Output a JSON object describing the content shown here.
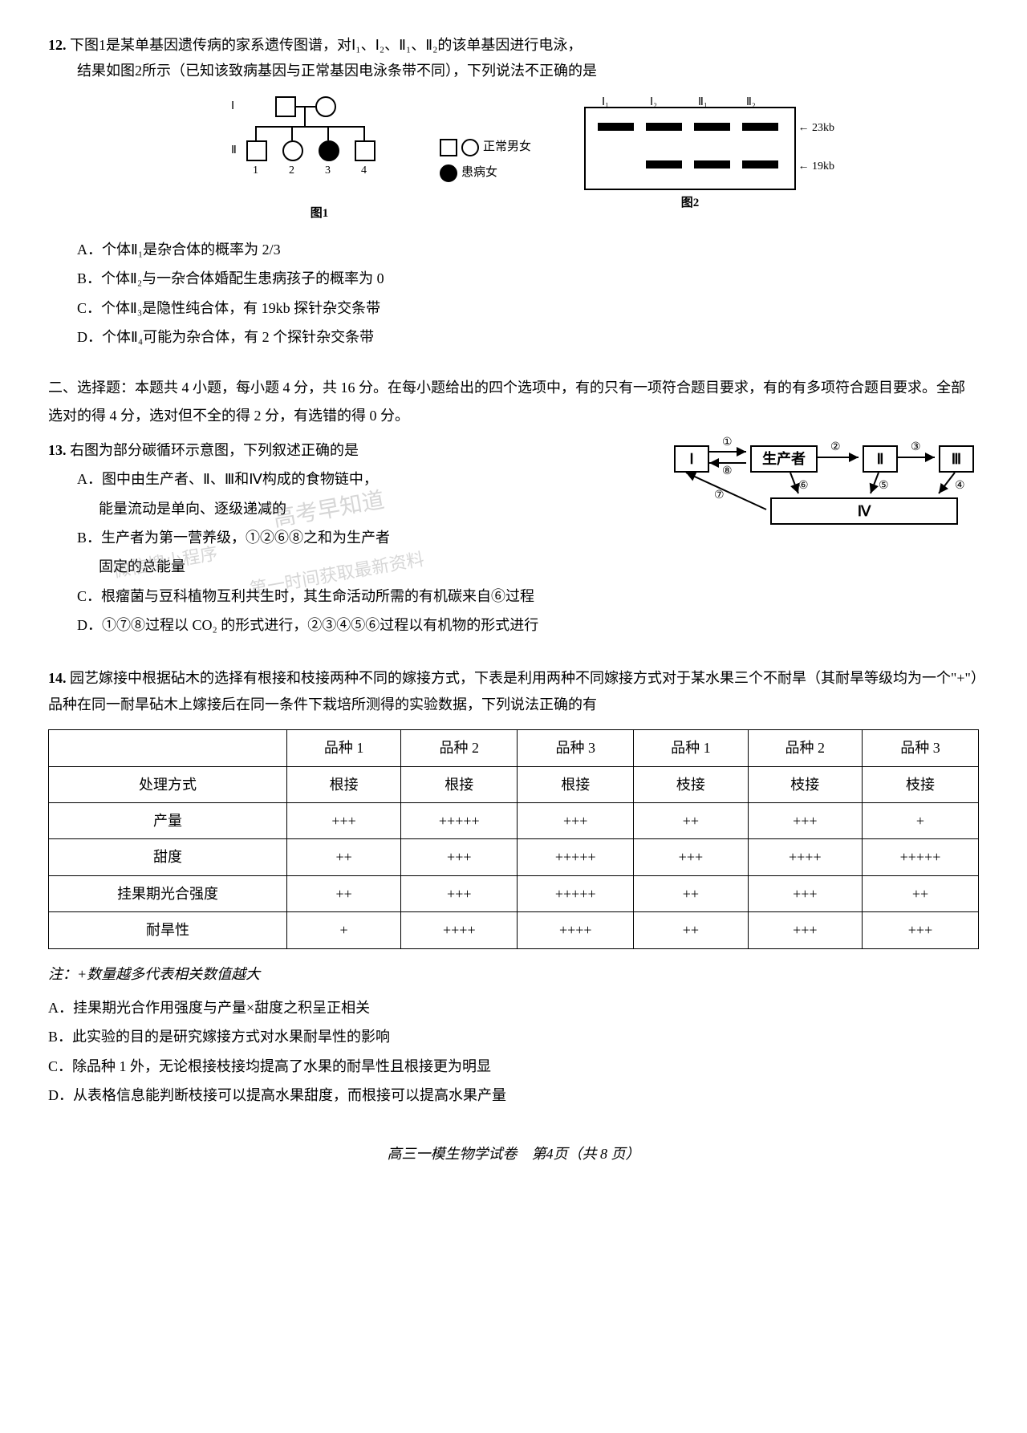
{
  "q12": {
    "number": "12.",
    "stem1": "下图1是某单基因遗传病的家系遗传图谱，对Ⅰ₁、Ⅰ₂、Ⅱ₁、Ⅱ₂的该单基因进行电泳，",
    "stem2": "结果如图2所示（已知该致病基因与正常基因电泳条带不同），下列说法不正确的是",
    "legend_normal": "正常男女",
    "legend_affected": "患病女",
    "fig1_label": "图1",
    "fig2_label": "图2",
    "gel_lanes": [
      "Ⅰ₁",
      "Ⅰ₂",
      "Ⅱ₁",
      "Ⅱ₂"
    ],
    "gel_size_top": "23kb",
    "gel_size_bot": "19kb",
    "ped_gen1": "Ⅰ",
    "ped_gen2": "Ⅱ",
    "optA": "A．个体Ⅱ₁是杂合体的概率为 2/3",
    "optB": "B．个体Ⅱ₂与一杂合体婚配生患病孩子的概率为 0",
    "optC": "C．个体Ⅱ₃是隐性纯合体，有 19kb 探针杂交条带",
    "optD": "D．个体Ⅱ₄可能为杂合体，有 2 个探针杂交条带"
  },
  "section2": {
    "header": "二、选择题：本题共 4 小题，每小题 4 分，共 16 分。在每小题给出的四个选项中，有的只有一项符合题目要求，有的有多项符合题目要求。全部选对的得 4 分，选对但不全的得 2 分，有选错的得 0 分。"
  },
  "q13": {
    "number": "13.",
    "stem": "右图为部分碳循环示意图，下列叙述正确的是",
    "boxes": {
      "I": "Ⅰ",
      "prod": "生产者",
      "II": "Ⅱ",
      "III": "Ⅲ",
      "IV": "Ⅳ"
    },
    "arrow_labels": [
      "①",
      "②",
      "③",
      "④",
      "⑤",
      "⑥",
      "⑦",
      "⑧"
    ],
    "optA_l1": "A．图中由生产者、Ⅱ、Ⅲ和Ⅳ构成的食物链中，",
    "optA_l2": "能量流动是单向、逐级递减的",
    "optB_l1": "B．生产者为第一营养级，①②⑥⑧之和为生产者",
    "optB_l2": "固定的总能量",
    "optC": "C．根瘤菌与豆科植物互利共生时，其生命活动所需的有机碳来自⑥过程",
    "optD": "D．①⑦⑧过程以 CO₂ 的形式进行，②③④⑤⑥过程以有机物的形式进行",
    "watermark1": "高考早知道",
    "watermark2": "微信搜小程序",
    "watermark3": "第一时间获取最新资料"
  },
  "q14": {
    "number": "14.",
    "stem": "园艺嫁接中根据砧木的选择有根接和枝接两种不同的嫁接方式，下表是利用两种不同嫁接方式对于某水果三个不耐旱（其耐旱等级均为一个\"+\"）品种在同一耐旱砧木上嫁接后在同一条件下栽培所测得的实验数据，下列说法正确的有",
    "table": {
      "columns": [
        "",
        "品种 1",
        "品种 2",
        "品种 3",
        "品种 1",
        "品种 2",
        "品种 3"
      ],
      "rows": [
        [
          "处理方式",
          "根接",
          "根接",
          "根接",
          "枝接",
          "枝接",
          "枝接"
        ],
        [
          "产量",
          "+++",
          "+++++",
          "+++",
          "++",
          "+++",
          "+"
        ],
        [
          "甜度",
          "++",
          "+++",
          "+++++",
          "+++",
          "++++",
          "+++++"
        ],
        [
          "挂果期光合强度",
          "++",
          "+++",
          "+++++",
          "++",
          "+++",
          "++"
        ],
        [
          "耐旱性",
          "+",
          "++++",
          "++++",
          "++",
          "+++",
          "+++"
        ]
      ]
    },
    "note": "注：+数量越多代表相关数值越大",
    "optA": "A．挂果期光合作用强度与产量×甜度之积呈正相关",
    "optB": "B．此实验的目的是研究嫁接方式对水果耐旱性的影响",
    "optC": "C．除品种 1 外，无论根接枝接均提高了水果的耐旱性且根接更为明显",
    "optD": "D．从表格信息能判断枝接可以提高水果甜度，而根接可以提高水果产量"
  },
  "footer": "高三一模生物学试卷　第4页（共 8 页）"
}
